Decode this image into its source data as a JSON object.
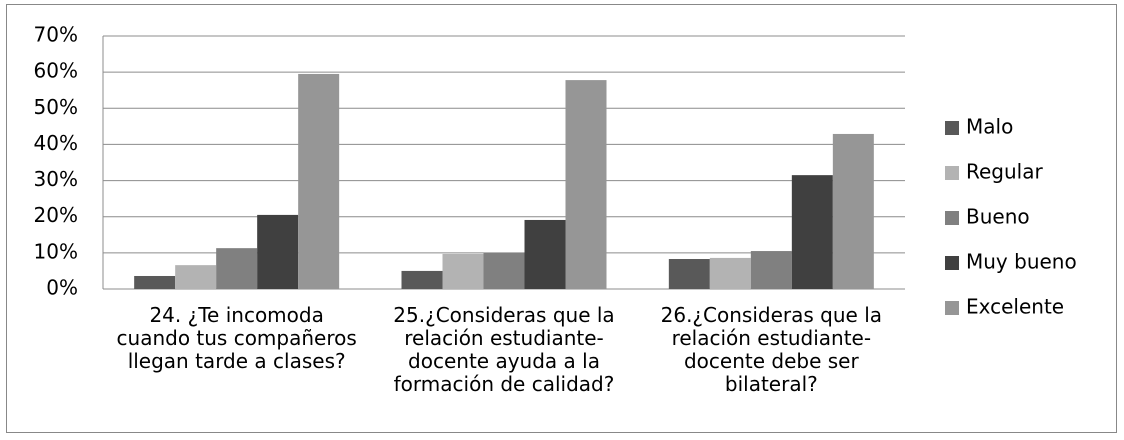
{
  "chart_data": {
    "type": "bar",
    "categories": [
      "24. ¿Te incomoda\ncuando tus compañeros\nllegan tarde a clases?",
      "25.¿Consideras que la\nrelación estudiante-\ndocente  ayuda a la\nformación de calidad?",
      "26.¿Consideras que la\nrelación estudiante-\ndocente debe ser\nbilateral?"
    ],
    "series": [
      {
        "name": "Malo",
        "color": "#595959",
        "values": [
          3.6,
          5.0,
          8.3
        ]
      },
      {
        "name": "Regular",
        "color": "#b3b3b3",
        "values": [
          6.6,
          9.7,
          8.6
        ]
      },
      {
        "name": "Bueno",
        "color": "#808080",
        "values": [
          11.3,
          10.0,
          10.5
        ]
      },
      {
        "name": "Muy bueno",
        "color": "#404040",
        "values": [
          20.5,
          19.1,
          31.5
        ]
      },
      {
        "name": "Excelente",
        "color": "#969696",
        "values": [
          59.5,
          57.8,
          42.9
        ]
      }
    ],
    "ylim": [
      0,
      70
    ],
    "yticks": [
      {
        "value": 0,
        "label": "0%"
      },
      {
        "value": 10,
        "label": "10%"
      },
      {
        "value": 20,
        "label": "20%"
      },
      {
        "value": 30,
        "label": "30%"
      },
      {
        "value": 40,
        "label": "40%"
      },
      {
        "value": 50,
        "label": "50%"
      },
      {
        "value": 60,
        "label": "60%"
      },
      {
        "value": 70,
        "label": "70%"
      }
    ],
    "grid": true,
    "legend": "right"
  }
}
